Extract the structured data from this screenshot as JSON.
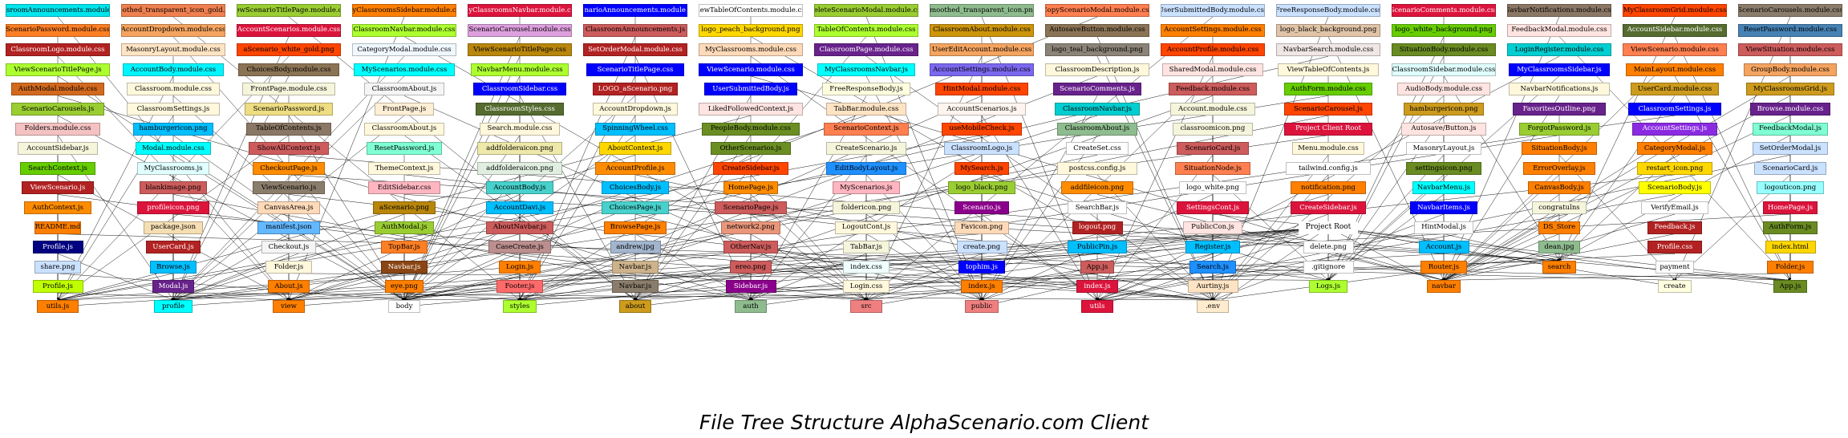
{
  "title": "File Tree Structure AlphaScenario.com Client",
  "colors": {
    "edge": "#000000",
    "background": "#ffffff"
  },
  "root": "Project Root",
  "hub_folders": [
    "profile",
    "view",
    "body",
    "styles",
    "about",
    "auth",
    "src",
    "public",
    "utils",
    ".env",
    "create",
    "Logs.js",
    "Router.js",
    "navbar",
    "search"
  ],
  "columns": [
    [
      {
        "l": "ClassroomAnnouncements.module.css",
        "c": "#00e5ee"
      },
      {
        "l": "ScenarioPassword.module.css",
        "c": "#ff7f24"
      },
      {
        "l": "ClassroomLogo.module.css",
        "c": "#b22222"
      },
      {
        "l": "ViewScenarioTitlePage.js",
        "c": "#adff2f"
      },
      {
        "l": "AuthModal.module.css",
        "c": "#d2691e"
      },
      {
        "l": "ScenarioCarousels.js",
        "c": "#9acd32"
      },
      {
        "l": "Folders.module.css",
        "c": "#f4c2c2"
      },
      {
        "l": "AccountSidebar.js",
        "c": "#f5f5dc"
      },
      {
        "l": "SearchContext.js",
        "c": "#66cd00"
      },
      {
        "l": "ViewScenario.js",
        "c": "#b22222"
      },
      {
        "l": "AuthContext.js",
        "c": "#ff8c00"
      },
      {
        "l": "README.md",
        "c": "#ff7f00"
      },
      {
        "l": "Profile.js",
        "c": "#000080"
      },
      {
        "l": "share.png",
        "c": "#cae1ff"
      },
      {
        "l": "Profile.js",
        "c": "#bfff00"
      },
      {
        "l": "utils.js",
        "c": "#ff7f00"
      }
    ],
    [
      {
        "l": "smoothed_transparent_icon_gold.png",
        "c": "#f08050"
      },
      {
        "l": "AccountDropdown.module.css",
        "c": "#f4a460"
      },
      {
        "l": "MasonryLayout.module.css",
        "c": "#ffe4c4"
      },
      {
        "l": "AccountBody.module.css",
        "c": "#00f5ff"
      },
      {
        "l": "Classroom.module.css",
        "c": "#fff8dc"
      },
      {
        "l": "ClassroomSettings.js",
        "c": "#fff8dc"
      },
      {
        "l": "hamburgericon.png",
        "c": "#00bfff"
      },
      {
        "l": "Modal.module.css",
        "c": "#00ffff"
      },
      {
        "l": "MyClassrooms.js",
        "c": "#e0ffff"
      },
      {
        "l": "blankimage.png",
        "c": "#cd5c5c"
      },
      {
        "l": "profileicon.png",
        "c": "#dc143c"
      },
      {
        "l": "package.json",
        "c": "#f5deb3"
      },
      {
        "l": "UserCard.js",
        "c": "#b22222"
      },
      {
        "l": "Browse.js",
        "c": "#00bfff"
      },
      {
        "l": "Modal.js",
        "c": "#68228b"
      },
      {
        "l": "profile",
        "c": "#00ffff"
      }
    ],
    [
      {
        "l": "ViewScenarioTitlePage.module.css",
        "c": "#9acd32"
      },
      {
        "l": "AccountScenarios.module.css",
        "c": "#dc143c"
      },
      {
        "l": "aScenario_white_gold.png",
        "c": "#ff4500"
      },
      {
        "l": "ChoicesBody.module.css",
        "c": "#8b7355"
      },
      {
        "l": "FrontPage.module.css",
        "c": "#f5f5dc"
      },
      {
        "l": "ScenarioPassword.js",
        "c": "#eedd82"
      },
      {
        "l": "TableOfContents.js",
        "c": "#8b7765"
      },
      {
        "l": "ShowAllContext.js",
        "c": "#cd5c5c"
      },
      {
        "l": "CheckoutPage.js",
        "c": "#ff8c00"
      },
      {
        "l": "ViewScenario.js",
        "c": "#8b7d6b"
      },
      {
        "l": "CanvasArea.js",
        "c": "#ffdab9"
      },
      {
        "l": "manifest.json",
        "c": "#63b8ff"
      },
      {
        "l": "Checkout.js",
        "c": "#f5f5f5"
      },
      {
        "l": "Folder.js",
        "c": "#fff8dc"
      },
      {
        "l": "About.js",
        "c": "#ff7f00"
      },
      {
        "l": "view",
        "c": "#ff7f00"
      }
    ],
    [
      {
        "l": "MyClassroomsSidebar.module.css",
        "c": "#ff7f00"
      },
      {
        "l": "ClassroomNavbar.module.css",
        "c": "#adff2f"
      },
      {
        "l": "CategoryModal.module.css",
        "c": "#f0f8ff"
      },
      {
        "l": "MyScenarios.module.css",
        "c": "#00ffff"
      },
      {
        "l": "ClassroomAbout.js",
        "c": "#f5f5f5"
      },
      {
        "l": "FrontPage.js",
        "c": "#ffefd5"
      },
      {
        "l": "ClassroomAbout.js",
        "c": "#fff8dc"
      },
      {
        "l": "ResetPassword.js",
        "c": "#7fffd4"
      },
      {
        "l": "ThemeContext.js",
        "c": "#fff8dc"
      },
      {
        "l": "EditSidebar.css",
        "c": "#ffb6c1"
      },
      {
        "l": "aScenario.png",
        "c": "#b8860b"
      },
      {
        "l": "AuthModal.js",
        "c": "#9acd32"
      },
      {
        "l": "TopBar.js",
        "c": "#ff7f24"
      },
      {
        "l": "Navbar.js",
        "c": "#8b4513"
      },
      {
        "l": "eye.png",
        "c": "#ff7f00"
      },
      {
        "l": "body",
        "c": "#ffffff"
      }
    ],
    [
      {
        "l": "MyClassroomsNavbar.module.css",
        "c": "#dc143c"
      },
      {
        "l": "ScenarioCarousel.module.css",
        "c": "#dda0dd"
      },
      {
        "l": "ViewScenarioTitlePage.css",
        "c": "#b8860b"
      },
      {
        "l": "NavbarMenu.module.css",
        "c": "#adff2f"
      },
      {
        "l": "ClassroomSidebar.css",
        "c": "#0000ff"
      },
      {
        "l": "ClassroomStyles.css",
        "c": "#556b2f"
      },
      {
        "l": "Search.module.css",
        "c": "#fff8dc"
      },
      {
        "l": "addfolderaicon.png",
        "c": "#eee8aa"
      },
      {
        "l": "addfolderaicon.png",
        "c": "#e0eee0"
      },
      {
        "l": "AccountBody.js",
        "c": "#48d1cc"
      },
      {
        "l": "AccountDavi.js",
        "c": "#00bfff"
      },
      {
        "l": "AboutNavbar.js",
        "c": "#cd5c5c"
      },
      {
        "l": "CaseCreate.js",
        "c": "#bc8f8f"
      },
      {
        "l": "Login.js",
        "c": "#ff7f00"
      },
      {
        "l": "Footer.js",
        "c": "#ff6a6a"
      },
      {
        "l": "styles",
        "c": "#adff2f"
      }
    ],
    [
      {
        "l": "ScenarioAnnouncements.module.css",
        "c": "#0000ff"
      },
      {
        "l": "ClassroomAnnouncements.js",
        "c": "#cd5c5c"
      },
      {
        "l": "SetOrderModal.module.css",
        "c": "#b22222"
      },
      {
        "l": "ScenarioTitlePage.css",
        "c": "#0000ff"
      },
      {
        "l": "LOGO_aScenario.png",
        "c": "#b22222"
      },
      {
        "l": "AccountDropdown.js",
        "c": "#fff8dc"
      },
      {
        "l": "SpinningWheel.css",
        "c": "#00bfff"
      },
      {
        "l": "AboutContext.js",
        "c": "#ffd700"
      },
      {
        "l": "AccountProfile.js",
        "c": "#ff8c00"
      },
      {
        "l": "ChoicesBody.js",
        "c": "#00bfff"
      },
      {
        "l": "ChoicesPage.js",
        "c": "#48d1cc"
      },
      {
        "l": "BrowsePage.js",
        "c": "#ff7f00"
      },
      {
        "l": "andrew.jpg",
        "c": "#a2b5cd"
      },
      {
        "l": "Navbar.js",
        "c": "#cdb38b"
      },
      {
        "l": "Navbar.js",
        "c": "#8b7d6b"
      },
      {
        "l": "about",
        "c": "#cd9b1d"
      }
    ],
    [
      {
        "l": "ViewTableOfContents.module.css",
        "c": "#ffffff"
      },
      {
        "l": "logo_peach_background.png",
        "c": "#ffd700"
      },
      {
        "l": "MyClassrooms.module.css",
        "c": "#ffdab9"
      },
      {
        "l": "ViewScenario.module.css",
        "c": "#0000ff"
      },
      {
        "l": "UserSubmittedBody.js",
        "c": "#0000ff"
      },
      {
        "l": "LikedFollowedContext.js",
        "c": "#ffe4e1"
      },
      {
        "l": "PeopleBody.module.css",
        "c": "#6b8e23"
      },
      {
        "l": "OtherScenarios.js",
        "c": "#6b8e23"
      },
      {
        "l": "CreateSidebar.js",
        "c": "#ff4500"
      },
      {
        "l": "HomePage.js",
        "c": "#ff8c00"
      },
      {
        "l": "ScenarioPage.js",
        "c": "#cd5c5c"
      },
      {
        "l": "network2.png",
        "c": "#e9967a"
      },
      {
        "l": "OtherNav.js",
        "c": "#cd5c5c"
      },
      {
        "l": "ereo.png",
        "c": "#cd5c5c"
      },
      {
        "l": "Sidebar.js",
        "c": "#8b008b"
      },
      {
        "l": "auth",
        "c": "#8fbc8f"
      }
    ],
    [
      {
        "l": "DeleteScenarioModal.module.css",
        "c": "#9acd32"
      },
      {
        "l": "TableOfContents.module.css",
        "c": "#adff2f"
      },
      {
        "l": "ClassroomPage.module.css",
        "c": "#68228b"
      },
      {
        "l": "MyClassroomsNavbar.js",
        "c": "#00ffff"
      },
      {
        "l": "FreeResponseBody.js",
        "c": "#ffffe0"
      },
      {
        "l": "TabBar.module.css",
        "c": "#ffe4c4"
      },
      {
        "l": "ScenarioContext.js",
        "c": "#ff7f50"
      },
      {
        "l": "CreateScenario.js",
        "c": "#f5f5dc"
      },
      {
        "l": "EditBodyLayout.js",
        "c": "#1e90ff"
      },
      {
        "l": "MyScenarios.js",
        "c": "#ffb6c1"
      },
      {
        "l": "foldericon.png",
        "c": "#f5f5dc"
      },
      {
        "l": "LogoutCont.js",
        "c": "#fff8dc"
      },
      {
        "l": "TabBar.js",
        "c": "#f5f5dc"
      },
      {
        "l": "index.css",
        "c": "#f0ffff"
      },
      {
        "l": "Login.css",
        "c": "#fff8dc"
      },
      {
        "l": "src",
        "c": "#f08080"
      }
    ],
    [
      {
        "l": "smoothed_transparent_icon.png",
        "c": "#8fbc8f"
      },
      {
        "l": "ClassroomAbout.module.css",
        "c": "#cd950c"
      },
      {
        "l": "UserEditAccount.module.css",
        "c": "#f4a460"
      },
      {
        "l": "AccountSettings.module.css",
        "c": "#7b68ee"
      },
      {
        "l": "HintModal.module.css",
        "c": "#ff4500"
      },
      {
        "l": "AccountScenarios.js",
        "c": "#fff5ee"
      },
      {
        "l": "useMobileCheck.js",
        "c": "#ff4500"
      },
      {
        "l": "ClassroomLogo.js",
        "c": "#cae1ff"
      },
      {
        "l": "MySearch.js",
        "c": "#ff4500"
      },
      {
        "l": "logo_black.png",
        "c": "#9acd32"
      },
      {
        "l": "Scenario.js",
        "c": "#8b008b"
      },
      {
        "l": "Favicon.png",
        "c": "#ffdab9"
      },
      {
        "l": "create.png",
        "c": "#cae1ff"
      },
      {
        "l": "tophim.js",
        "c": "#0000ff"
      },
      {
        "l": "index.js",
        "c": "#ff7f00"
      },
      {
        "l": "public",
        "c": "#f08080"
      }
    ],
    [
      {
        "l": "CopyScenarioModal.module.css",
        "c": "#ff7f50"
      },
      {
        "l": "AutosaveButton.module.css",
        "c": "#8b7355"
      },
      {
        "l": "logo_teal_background.png",
        "c": "#8b8378"
      },
      {
        "l": "ClassroomDescription.js",
        "c": "#fff8dc"
      },
      {
        "l": "ScenarioComments.js",
        "c": "#68228b"
      },
      {
        "l": "ClassroomNavbar.js",
        "c": "#00ced1"
      },
      {
        "l": "ClassroomAbout.js",
        "c": "#8fbc8f"
      },
      {
        "l": "CreateSet.css",
        "c": "#ffffff"
      },
      {
        "l": "postcss.config.js",
        "c": "#fff8dc"
      },
      {
        "l": "addfileicon.png",
        "c": "#ff8c00"
      },
      {
        "l": "SearchBar.js",
        "c": "#ffffff"
      },
      {
        "l": "logout.png",
        "c": "#b22222"
      },
      {
        "l": "PublicPin.js",
        "c": "#00bfff"
      },
      {
        "l": "App.js",
        "c": "#cd5c5c"
      },
      {
        "l": "index.js",
        "c": "#dc143c"
      },
      {
        "l": "utils",
        "c": "#dc143c"
      }
    ],
    [
      {
        "l": "UserSubmittedBody.module.css",
        "c": "#cae1ff"
      },
      {
        "l": "AccountSettings.module.css",
        "c": "#ff7f00"
      },
      {
        "l": "AccountProfile.module.css",
        "c": "#ff4500"
      },
      {
        "l": "SharedModal.module.css",
        "c": "#ffe4e1"
      },
      {
        "l": "Feedback.module.css",
        "c": "#cd5c5c"
      },
      {
        "l": "Account.module.css",
        "c": "#f5f5dc"
      },
      {
        "l": "classroomicon.png",
        "c": "#f5f5dc"
      },
      {
        "l": "ScenarioCard.js",
        "c": "#cd5c5c"
      },
      {
        "l": "SituationNode.js",
        "c": "#ff7f50"
      },
      {
        "l": "logo_white.png",
        "c": "#ffffff"
      },
      {
        "l": "SettingsCont.js",
        "c": "#dc143c"
      },
      {
        "l": "PublicCon.js",
        "c": "#ffe4e1"
      },
      {
        "l": "Register.js",
        "c": "#00bfff"
      },
      {
        "l": "Search.js",
        "c": "#1e90ff"
      },
      {
        "l": "Aurtiny.js",
        "c": "#ffe4c4"
      },
      {
        "l": ".env",
        "c": "#ffebcd"
      }
    ],
    [
      {
        "l": "FreeResponseBody.module.css",
        "c": "#cae1ff"
      },
      {
        "l": "logo_black_background.png",
        "c": "#e0c4a8"
      },
      {
        "l": "NavbarSearch.module.css",
        "c": "#f0e6e6"
      },
      {
        "l": "ViewTableOfContents.js",
        "c": "#fff8dc"
      },
      {
        "l": "AuthForm.module.css",
        "c": "#66cd00"
      },
      {
        "l": "ScenarioCarousel.js",
        "c": "#ff4500"
      },
      {
        "l": "Project Client Root",
        "c": "#dc143c"
      },
      {
        "l": "Menu.module.css",
        "c": "#fff8dc"
      },
      {
        "l": "tailwind.config.js",
        "c": "#ffffff"
      },
      {
        "l": "notification.png",
        "c": "#ff7f00"
      },
      {
        "l": "CreateSidebar.js",
        "c": "#dc143c"
      },
      {
        "l": "Project Root",
        "c": "#ffffff",
        "root": true
      },
      {
        "l": "delete.png",
        "c": "#ffffff"
      },
      {
        "l": ".gitignore",
        "c": "#ffffff"
      },
      {
        "l": "Logs.js",
        "c": "#adff2f"
      },
      {
        "l": "",
        "c": ""
      }
    ],
    [
      {
        "l": "ScenarioComments.module.css",
        "c": "#dc143c"
      },
      {
        "l": "logo_white_background.png",
        "c": "#66cd00"
      },
      {
        "l": "SituationBody.module.css",
        "c": "#698b22"
      },
      {
        "l": "ClassroomSidebar.module.css",
        "c": "#e0ffff"
      },
      {
        "l": "AudioBody.module.css",
        "c": "#ffe4e1"
      },
      {
        "l": "hamburgericon.png",
        "c": "#cd9b1d"
      },
      {
        "l": "Autosave/Button.js",
        "c": "#ffe4e1"
      },
      {
        "l": "MasonryLayout.js",
        "c": "#ffffff"
      },
      {
        "l": "settingsicon.png",
        "c": "#698b22"
      },
      {
        "l": "NavbarMenu.js",
        "c": "#00ffff"
      },
      {
        "l": "NavbarItems.js",
        "c": "#0000ff"
      },
      {
        "l": "HintModal.js",
        "c": "#ffffff"
      },
      {
        "l": "Account.js",
        "c": "#00bfff"
      },
      {
        "l": "Router.js",
        "c": "#ff7f00"
      },
      {
        "l": "navbar",
        "c": "#ff7f00"
      },
      {
        "l": "",
        "c": ""
      }
    ],
    [
      {
        "l": "NavbarNotifications.module.css",
        "c": "#8b7765"
      },
      {
        "l": "FeedbackModal.module.css",
        "c": "#ffe4e1"
      },
      {
        "l": "LoginRegister.module.css",
        "c": "#00ced1"
      },
      {
        "l": "MyClassroomsSidebar.js",
        "c": "#0000ff"
      },
      {
        "l": "NavbarNotifications.js",
        "c": "#fff8dc"
      },
      {
        "l": "FavoritesOutline.png",
        "c": "#68228b"
      },
      {
        "l": "ForgotPassword.js",
        "c": "#9acd32"
      },
      {
        "l": "SituationBody.js",
        "c": "#ff7f00"
      },
      {
        "l": "ErrorOverlay.js",
        "c": "#ff7f00"
      },
      {
        "l": "CanvasBody.js",
        "c": "#ff7f00"
      },
      {
        "l": "congratulns",
        "c": "#f5f5dc"
      },
      {
        "l": "DS_Store",
        "c": "#ff7f00"
      },
      {
        "l": "dean.jpg",
        "c": "#8fbc8f"
      },
      {
        "l": "search",
        "c": "#ff7f00"
      },
      {
        "l": "",
        "c": ""
      },
      {
        "l": "",
        "c": ""
      }
    ],
    [
      {
        "l": "MyClassroomGrid.module.css",
        "c": "#ff4500"
      },
      {
        "l": "AccountSidebar.module.css",
        "c": "#556b2f"
      },
      {
        "l": "ViewScenario.module.css",
        "c": "#ff7f50"
      },
      {
        "l": "MainLayout.module.css",
        "c": "#ff7f00"
      },
      {
        "l": "UserCard.module.css",
        "c": "#cd9b1d"
      },
      {
        "l": "ClassroomSettings.js",
        "c": "#0000ff"
      },
      {
        "l": "AccountSettings.js",
        "c": "#8a2be2"
      },
      {
        "l": "CategoryModal.js",
        "c": "#ff7f00"
      },
      {
        "l": "restart_icon.png",
        "c": "#ffd700"
      },
      {
        "l": "ScenarioBody.js",
        "c": "#ffff00"
      },
      {
        "l": "VerifyEmail.js",
        "c": "#ffffff"
      },
      {
        "l": "Feedback.js",
        "c": "#b22222"
      },
      {
        "l": "Profile.css",
        "c": "#b22222"
      },
      {
        "l": "payment",
        "c": "#ffffff"
      },
      {
        "l": "create",
        "c": "#ffffe0"
      },
      {
        "l": "",
        "c": ""
      }
    ],
    [
      {
        "l": "ScenarioCarousels.module.css",
        "c": "#8b7d6b"
      },
      {
        "l": "ResetPassword.module.css",
        "c": "#4682b4"
      },
      {
        "l": "ViewSituation.module.css",
        "c": "#cd5c5c"
      },
      {
        "l": "GroupBody.module.css",
        "c": "#f4a460"
      },
      {
        "l": "MyClassroomsGrid.js",
        "c": "#cd9b1d"
      },
      {
        "l": "Browse.module.css",
        "c": "#68228b"
      },
      {
        "l": "FeedbackModal.js",
        "c": "#7fffd4"
      },
      {
        "l": "SetOrderModal.js",
        "c": "#cae1ff"
      },
      {
        "l": "ScenarioCard.js",
        "c": "#cae1ff"
      },
      {
        "l": "logouticon.png",
        "c": "#97ffff"
      },
      {
        "l": "HomePage.js",
        "c": "#dc143c"
      },
      {
        "l": "AuthForm.js",
        "c": "#698b22"
      },
      {
        "l": "index.html",
        "c": "#ffd700"
      },
      {
        "l": "Folder.js",
        "c": "#ff7f00"
      },
      {
        "l": "App.js",
        "c": "#698b22"
      },
      {
        "l": "",
        "c": ""
      }
    ]
  ]
}
